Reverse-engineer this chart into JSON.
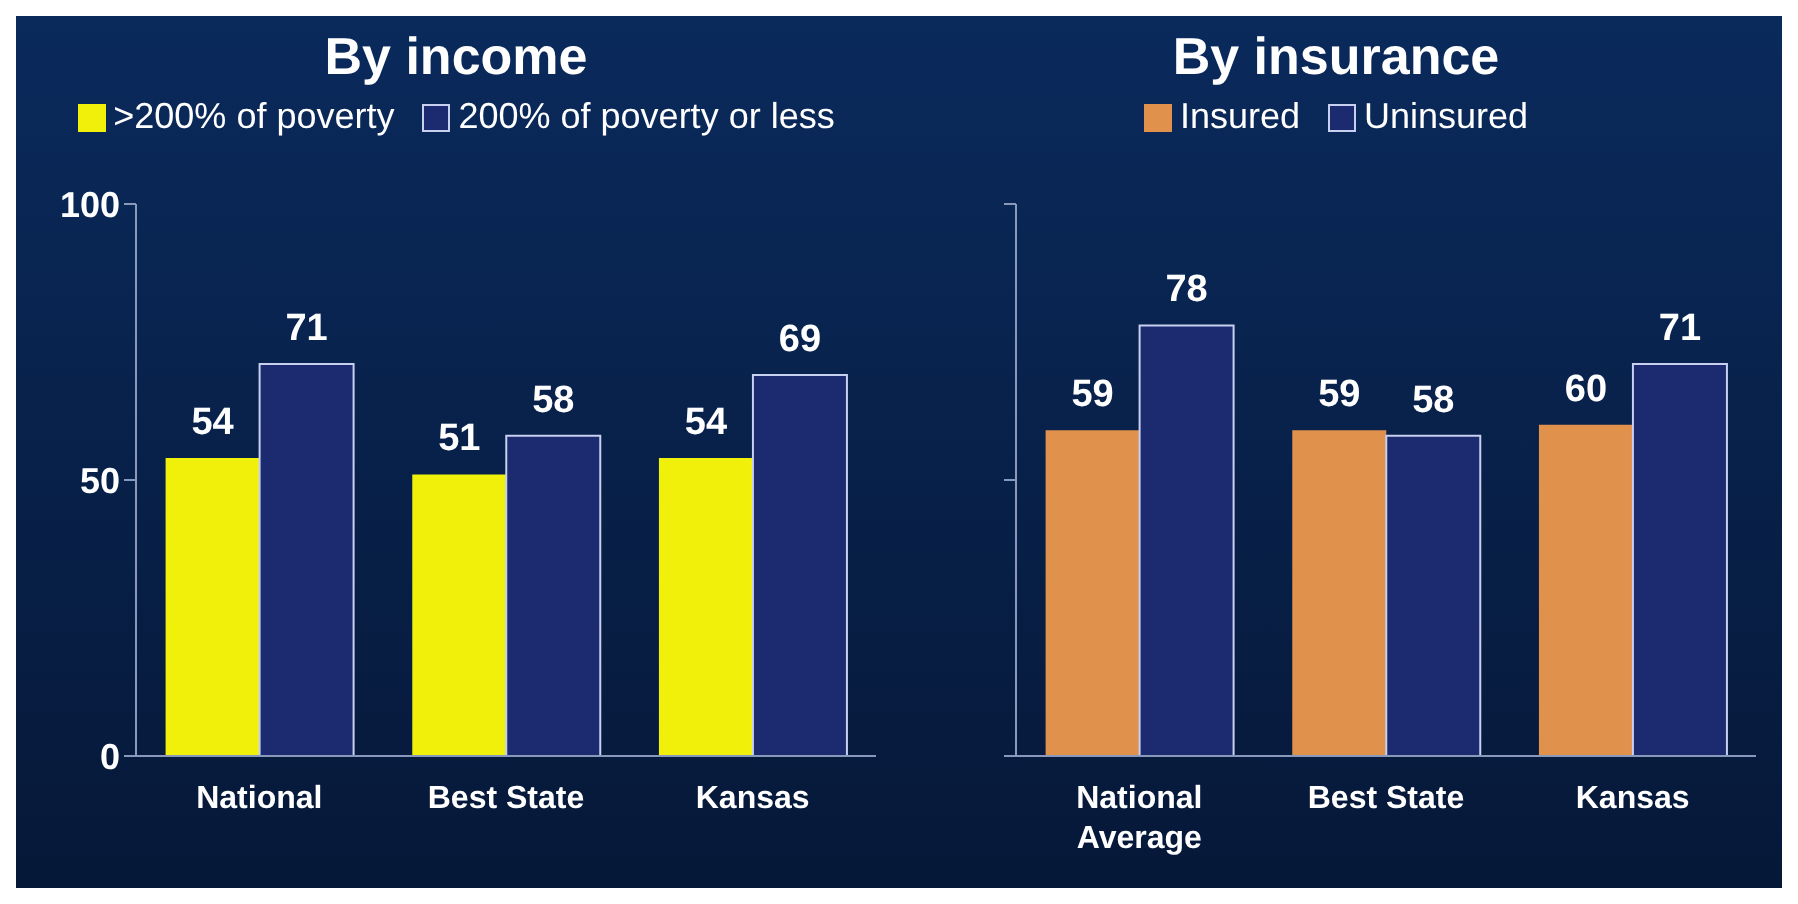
{
  "chart_data": [
    {
      "type": "bar",
      "title": "By income",
      "categories": [
        "National",
        "Best State",
        "Kansas"
      ],
      "series": [
        {
          "name": ">200% of poverty",
          "color": "#f0f00a",
          "values": [
            54,
            51,
            54
          ]
        },
        {
          "name": "200% of poverty or less",
          "color": "#1c2a70",
          "values": [
            71,
            58,
            69
          ]
        }
      ],
      "ylim": [
        0,
        100
      ],
      "yticks": [
        0,
        50,
        100
      ],
      "data_labels": true,
      "legend": "top",
      "grid": false
    },
    {
      "type": "bar",
      "title": "By insurance",
      "categories": [
        "National Average",
        "Best State",
        "Kansas"
      ],
      "series": [
        {
          "name": "Insured",
          "color": "#e0914c",
          "values": [
            59,
            59,
            60
          ]
        },
        {
          "name": "Uninsured",
          "color": "#1c2a70",
          "values": [
            78,
            58,
            71
          ]
        }
      ],
      "ylim": [
        0,
        100
      ],
      "yticks": [
        {
          "value": 0,
          "label": null
        },
        {
          "value": 50,
          "label": null
        },
        {
          "value": 100,
          "label": null
        }
      ],
      "tick_labels": "x",
      "data_labels": true,
      "legend": "top",
      "grid": false
    }
  ]
}
